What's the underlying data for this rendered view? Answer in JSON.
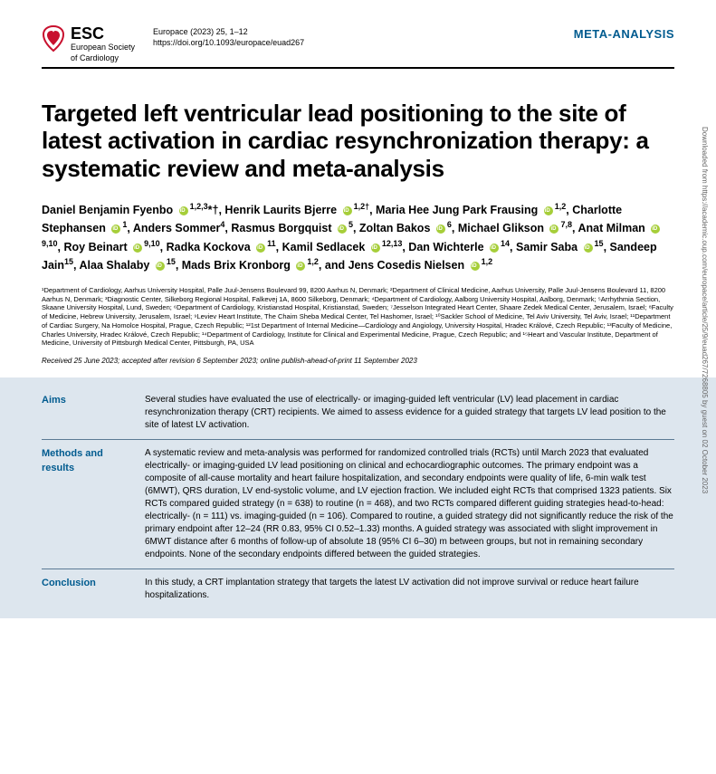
{
  "header": {
    "society_abbr": "ESC",
    "society_full_1": "European Society",
    "society_full_2": "of Cardiology",
    "journal_ref": "Europace (2023) 25, 1–12",
    "doi": "https://doi.org/10.1093/europace/euad267",
    "article_type": "META-ANALYSIS"
  },
  "title": "Targeted left ventricular lead positioning to the site of latest activation in cardiac resynchronization therapy: a systematic review and meta-analysis",
  "authors_html": "Daniel Benjamin Fyenbo <span class='orcid'></span><sup>1,2,3</sup>*†, Henrik Laurits Bjerre <span class='orcid'></span><sup>1,2†</sup>, Maria Hee Jung Park Frausing <span class='orcid'></span><sup>1,2</sup>, Charlotte Stephansen <span class='orcid'></span><sup>1</sup>, Anders Sommer<sup>4</sup>, Rasmus Borgquist <span class='orcid'></span><sup>5</sup>, Zoltan Bakos <span class='orcid'></span><sup>6</sup>, Michael Glikson <span class='orcid'></span><sup>7,8</sup>, Anat Milman <span class='orcid'></span><sup>9,10</sup>, Roy Beinart <span class='orcid'></span><sup>9,10</sup>, Radka Kockova <span class='orcid'></span><sup>11</sup>, Kamil Sedlacek <span class='orcid'></span><sup>12,13</sup>, Dan Wichterle <span class='orcid'></span><sup>14</sup>, Samir Saba <span class='orcid'></span><sup>15</sup>, Sandeep Jain<sup>15</sup>, Alaa Shalaby <span class='orcid'></span><sup>15</sup>, Mads Brix Kronborg <span class='orcid'></span><sup>1,2</sup>, and Jens Cosedis Nielsen <span class='orcid'></span><sup>1,2</sup>",
  "affiliations": "¹Department of Cardiology, Aarhus University Hospital, Palle Juul-Jensens Boulevard 99, 8200 Aarhus N, Denmark; ²Department of Clinical Medicine, Aarhus University, Palle Juul-Jensens Boulevard 11, 8200 Aarhus N, Denmark; ³Diagnostic Center, Silkeborg Regional Hospital, Falkevej 1A, 8600 Silkeborg, Denmark; ⁴Department of Cardiology, Aalborg University Hospital, Aalborg, Denmark; ⁵Arrhythmia Section, Skaane University Hospital, Lund, Sweden; ⁶Department of Cardiology, Kristianstad Hospital, Kristianstad, Sweden; ⁷Jesselson Integrated Heart Center, Shaare Zedek Medical Center, Jerusalem, Israel; ⁸Faculty of Medicine, Hebrew University, Jerusalem, Israel; ⁹Leviev Heart Institute, The Chaim Sheba Medical Center, Tel Hashomer, Israel; ¹⁰Sackler School of Medicine, Tel Aviv University, Tel Aviv, Israel; ¹¹Department of Cardiac Surgery, Na Homolce Hospital, Prague, Czech Republic; ¹²1st Department of Internal Medicine—Cardiology and Angiology, University Hospital, Hradec Králové, Czech Republic; ¹³Faculty of Medicine, Charles University, Hradec Králové, Czech Republic; ¹⁴Department of Cardiology, Institute for Clinical and Experimental Medicine, Prague, Czech Republic; and ¹⁵Heart and Vascular Institute, Department of Medicine, University of Pittsburgh Medical Center, Pittsburgh, PA, USA",
  "dates": "Received 25 June 2023; accepted after revision 6 September 2023; online publish-ahead-of-print 11 September 2023",
  "abstract": {
    "aims": {
      "label": "Aims",
      "text": "Several studies have evaluated the use of electrically- or imaging-guided left ventricular (LV) lead placement in cardiac resynchronization therapy (CRT) recipients. We aimed to assess evidence for a guided strategy that targets LV lead position to the site of latest LV activation."
    },
    "methods": {
      "label": "Methods and results",
      "text": "A systematic review and meta-analysis was performed for randomized controlled trials (RCTs) until March 2023 that evaluated electrically- or imaging-guided LV lead positioning on clinical and echocardiographic outcomes. The primary endpoint was a composite of all-cause mortality and heart failure hospitalization, and secondary endpoints were quality of life, 6-min walk test (6MWT), QRS duration, LV end-systolic volume, and LV ejection fraction. We included eight RCTs that comprised 1323 patients. Six RCTs compared guided strategy (n = 638) to routine (n = 468), and two RCTs compared different guiding strategies head-to-head: electrically- (n = 111) vs. imaging-guided (n = 106). Compared to routine, a guided strategy did not significantly reduce the risk of the primary endpoint after 12–24 (RR 0.83, 95% CI 0.52–1.33) months. A guided strategy was associated with slight improvement in 6MWT distance after 6 months of follow-up of absolute 18 (95% CI 6–30) m between groups, but not in remaining secondary endpoints. None of the secondary endpoints differed between the guided strategies."
    },
    "conclusion": {
      "label": "Conclusion",
      "text": "In this study, a CRT implantation strategy that targets the latest LV activation did not improve survival or reduce heart failure hospitalizations."
    }
  },
  "side_text": "Downloaded from https://academic.oup.com/europace/article/25/9/euad267/7268805 by guest on 02 October 2023",
  "colors": {
    "accent": "#005b8f",
    "abstract_bg": "#dde6ee",
    "orcid": "#a6ce39"
  }
}
